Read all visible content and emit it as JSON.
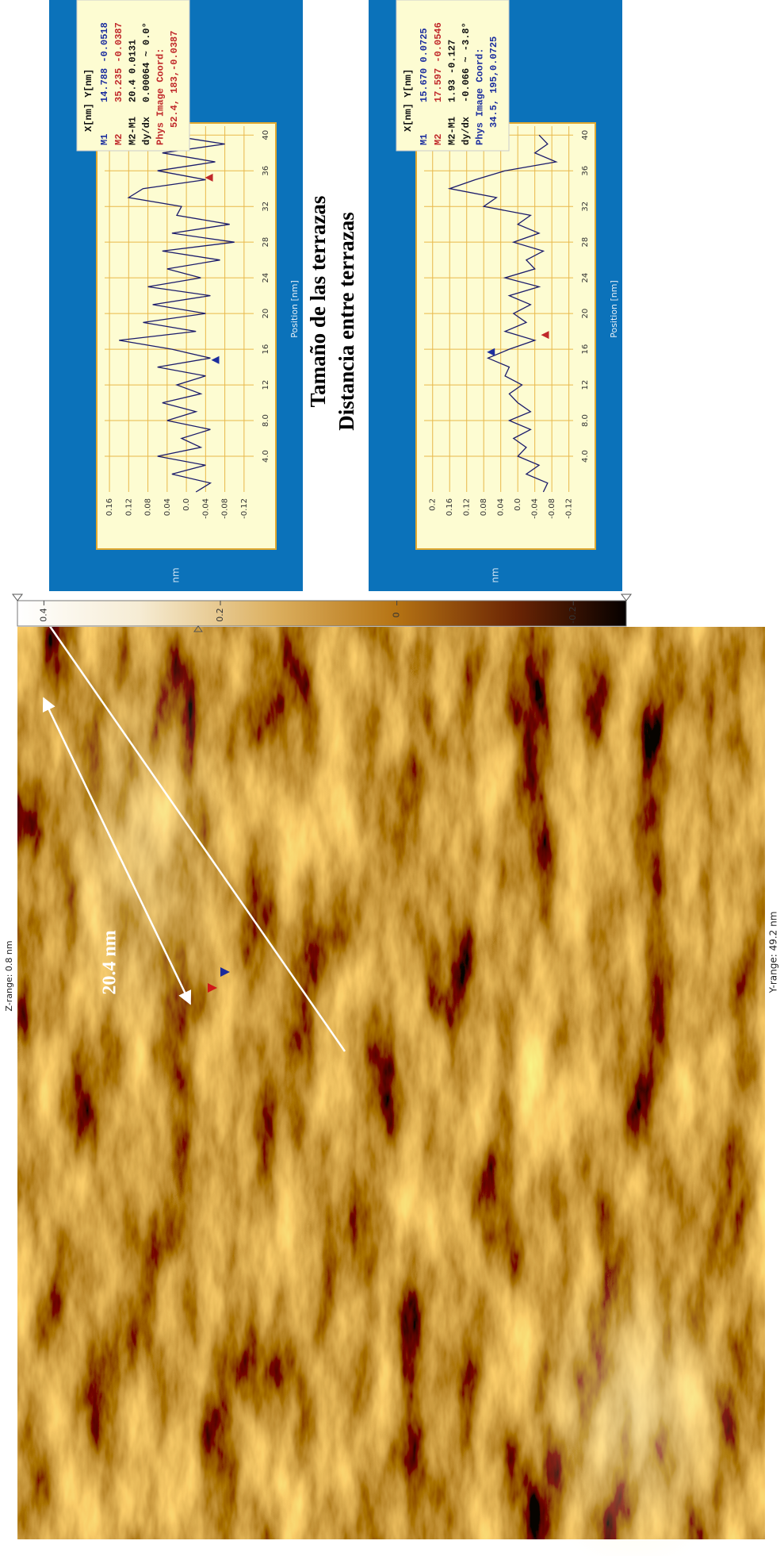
{
  "figure": {
    "z_range": "Z-range: 0.8 nm",
    "y_range": "Y-range: 49.2 nm",
    "scale_label": "20.4 nm"
  },
  "colorbar": {
    "lim": [
      -0.26,
      0.43
    ],
    "ticks": [
      0.4,
      0.2,
      0,
      -0.2
    ]
  },
  "chart_data": [
    {
      "type": "line",
      "title": "Tamaño de las terrazas",
      "y_label": "nm",
      "x_label": "Position [nm]",
      "color": "#1b1b6b",
      "x": [
        0,
        1,
        2,
        3,
        4,
        5,
        6,
        7,
        8,
        9,
        10,
        11,
        12,
        13,
        14,
        15,
        16,
        17,
        18,
        19,
        20,
        21,
        22,
        23,
        24,
        25,
        26,
        27,
        28,
        29,
        30,
        31,
        32,
        33,
        34,
        35,
        36,
        37,
        38,
        39,
        40
      ],
      "values": [
        -0.02,
        -0.05,
        0.03,
        -0.04,
        0.06,
        -0.03,
        0.01,
        -0.05,
        0.04,
        -0.02,
        0.05,
        -0.03,
        0.02,
        -0.04,
        0.06,
        -0.05,
        0.03,
        0.14,
        -0.02,
        0.09,
        -0.04,
        0.07,
        -0.05,
        0.08,
        -0.03,
        0.04,
        -0.07,
        0.05,
        -0.1,
        0.03,
        -0.09,
        0.02,
        0.01,
        0.12,
        0.09,
        -0.04,
        0.06,
        -0.06,
        0.05,
        -0.08,
        0.04
      ],
      "xlim": [
        0,
        41
      ],
      "ylim": [
        -0.14,
        0.17
      ],
      "xticks": [
        {
          "value": 4,
          "label": "4.0"
        },
        {
          "value": 8,
          "label": "8.0"
        },
        12,
        16,
        20,
        24,
        28,
        32,
        36,
        40
      ],
      "yticks": [
        0.16,
        0.12,
        0.08,
        0.04,
        {
          "value": 0,
          "label": "0.0"
        },
        -0.04,
        -0.08,
        -0.12
      ],
      "grid": true,
      "info": {
        "header": "X[nm]  Y[nm]",
        "rows": [
          {
            "label": "M1",
            "value": "14.788 -0.0518",
            "color": "#1c2e9e"
          },
          {
            "label": "M2",
            "value": "35.235 -0.0387",
            "color": "#c0282a"
          },
          {
            "label": "M2-M1",
            "value": "20.4 0.0131",
            "color": "#111111"
          },
          {
            "label": "dy/dx",
            "value": "0.00064 ~ 0.0°",
            "color": "#111111"
          },
          {
            "label": "Phys Image Coord:",
            "color": "#c0282a"
          },
          {
            "value": "52.4, 183,-0.0387",
            "color": "#c0282a"
          }
        ]
      }
    },
    {
      "type": "line",
      "title": "Distancia entre terrazas",
      "y_label": "nm",
      "x_label": "Position [nm]",
      "color": "#1b1b6b",
      "x": [
        0,
        1,
        2,
        3,
        4,
        5,
        6,
        7,
        8,
        9,
        10,
        11,
        12,
        13,
        14,
        15,
        16,
        17,
        18,
        19,
        20,
        21,
        22,
        23,
        24,
        25,
        26,
        27,
        28,
        29,
        30,
        31,
        32,
        33,
        34,
        35,
        36,
        37,
        38,
        39,
        40
      ],
      "values": [
        -0.06,
        -0.07,
        -0.02,
        -0.05,
        0.0,
        -0.02,
        0.01,
        -0.03,
        0.02,
        -0.03,
        0.0,
        0.02,
        -0.01,
        0.03,
        0.02,
        0.07,
        0.02,
        -0.04,
        0.03,
        -0.02,
        0.01,
        -0.03,
        0.02,
        -0.05,
        0.03,
        -0.04,
        -0.02,
        -0.06,
        0.01,
        -0.05,
        0.0,
        -0.03,
        0.08,
        0.05,
        0.16,
        0.1,
        0.03,
        -0.09,
        -0.04,
        -0.07,
        -0.05
      ],
      "xlim": [
        0,
        41
      ],
      "ylim": [
        -0.13,
        0.22
      ],
      "xticks": [
        {
          "value": 4,
          "label": "4.0"
        },
        {
          "value": 8,
          "label": "8.0"
        },
        12,
        16,
        20,
        24,
        28,
        32,
        36,
        40
      ],
      "yticks": [
        0.2,
        0.16,
        0.12,
        0.08,
        0.04,
        {
          "value": 0,
          "label": "0.0"
        },
        -0.04,
        -0.08,
        -0.12
      ],
      "grid": true,
      "info": {
        "header": "X[nm]  Y[nm]",
        "rows": [
          {
            "label": "M1",
            "value": "15.670 0.0725",
            "color": "#1c2e9e"
          },
          {
            "label": "M2",
            "value": "17.597 -0.0546",
            "color": "#c0282a"
          },
          {
            "label": "M2-M1",
            "value": "1.93 -0.127",
            "color": "#111111"
          },
          {
            "label": "dy/dx",
            "value": "-0.066 ~ -3.8°",
            "color": "#111111"
          },
          {
            "label": "Phys Image Coord:",
            "color": "#1c2e9e"
          },
          {
            "value": "34.5, 195,0.0725",
            "color": "#1c2e9e"
          }
        ]
      }
    }
  ]
}
